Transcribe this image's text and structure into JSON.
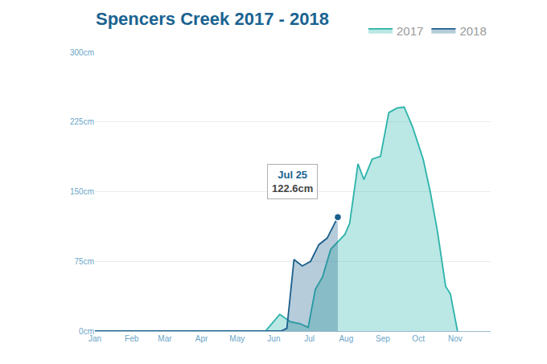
{
  "chart_data": {
    "type": "area",
    "title": "Spencers Creek 2017 - 2018",
    "legend": "top right",
    "grid": true,
    "xlim": [
      1,
      335
    ],
    "xticks": [
      {
        "value": 1,
        "label": "Jan"
      },
      {
        "value": 32,
        "label": "Feb"
      },
      {
        "value": 60,
        "label": "Mar"
      },
      {
        "value": 91,
        "label": "Apr"
      },
      {
        "value": 121,
        "label": "May"
      },
      {
        "value": 152,
        "label": "Jun"
      },
      {
        "value": 182,
        "label": "Jul"
      },
      {
        "value": 213,
        "label": "Aug"
      },
      {
        "value": 244,
        "label": "Sep"
      },
      {
        "value": 274,
        "label": "Oct"
      },
      {
        "value": 305,
        "label": "Nov"
      }
    ],
    "ylim": [
      0,
      300
    ],
    "yticks": [
      {
        "value": 0,
        "label": "0cm"
      },
      {
        "value": 75,
        "label": "75cm"
      },
      {
        "value": 150,
        "label": "150cm"
      },
      {
        "value": 225,
        "label": "225cm"
      },
      {
        "value": 300,
        "label": "300cm"
      }
    ],
    "series": [
      {
        "name": "2017",
        "color": "#2bb3aa",
        "x": [
          1,
          145,
          157,
          166,
          174,
          181,
          187,
          193,
          200,
          206,
          212,
          216,
          223,
          228,
          235,
          242,
          249,
          256,
          262,
          269,
          278,
          284,
          290,
          297,
          301,
          307
        ],
        "values": [
          0,
          0,
          18,
          10,
          8,
          4,
          45,
          58,
          88,
          96,
          104,
          116,
          180,
          163,
          185,
          188,
          235,
          240,
          241,
          220,
          185,
          150,
          108,
          48,
          40,
          0
        ]
      },
      {
        "name": "2018",
        "color": "#1b5f8c",
        "x": [
          1,
          158,
          163,
          169,
          176,
          183,
          190,
          197,
          206
        ],
        "values": [
          0,
          0,
          3,
          77,
          70,
          75,
          93,
          100,
          122.6
        ]
      }
    ],
    "annotations": [
      {
        "x": 206,
        "y": 122.6,
        "title": "Jul 25",
        "text": "122.6cm"
      }
    ]
  }
}
